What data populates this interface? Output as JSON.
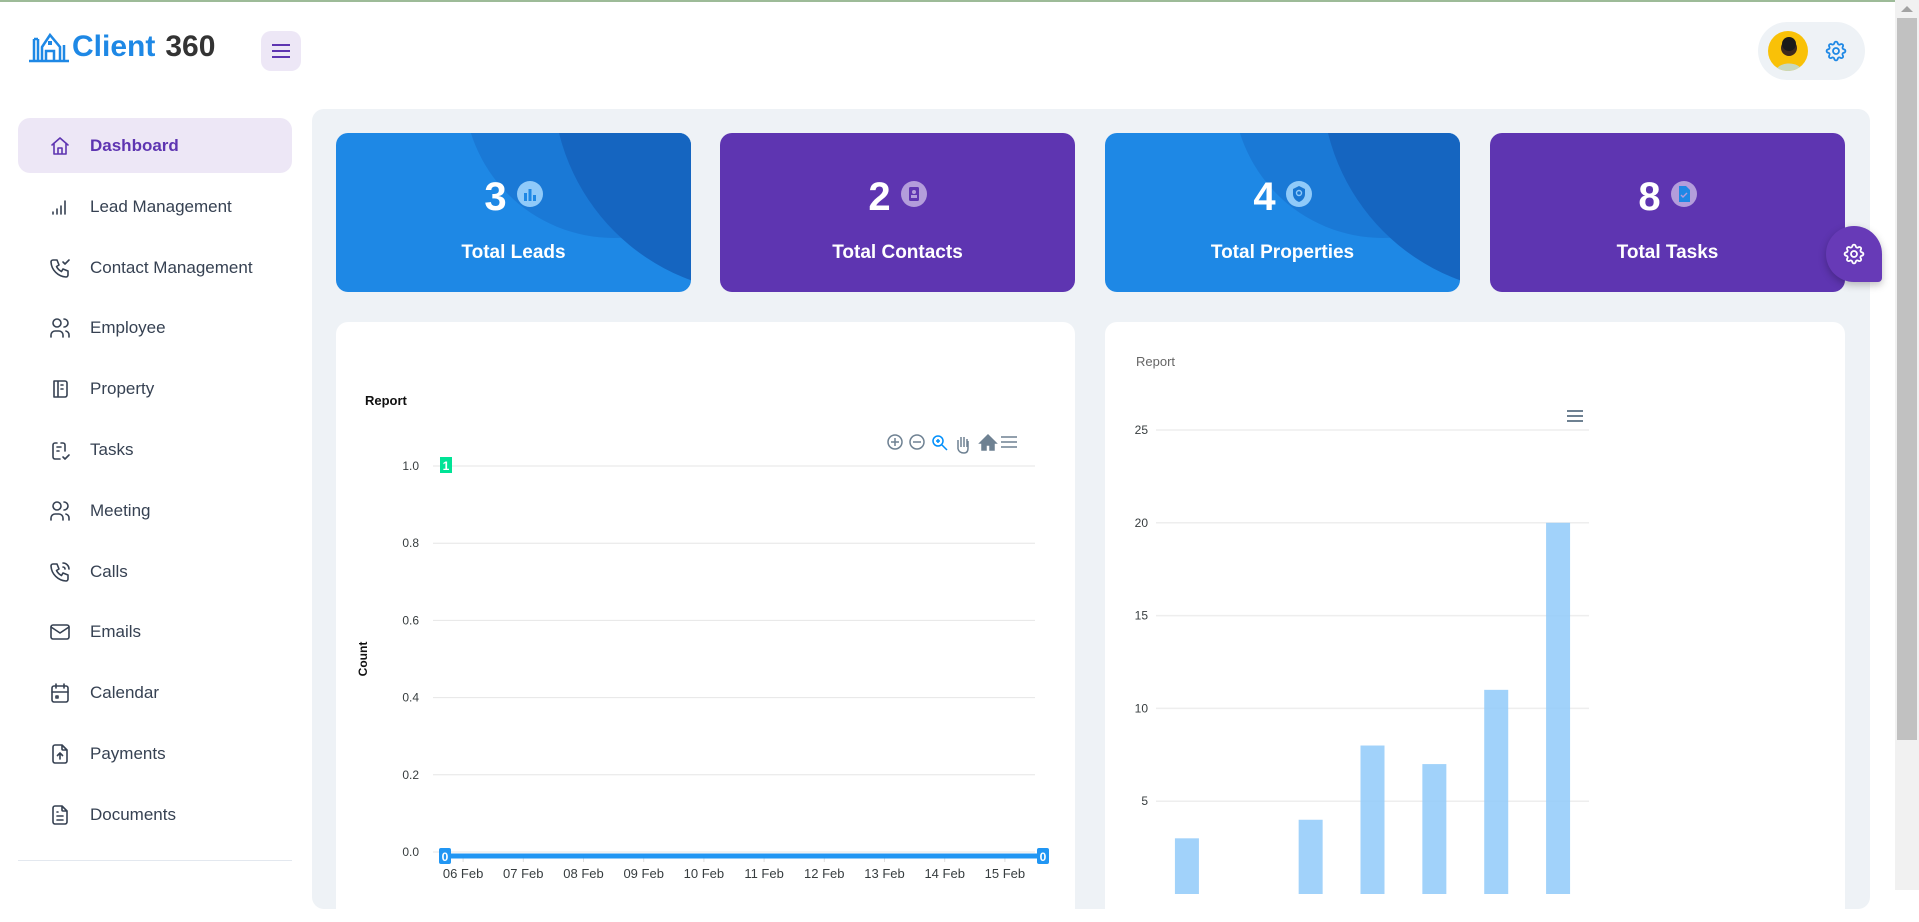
{
  "app": {
    "brand_part1": "Client",
    "brand_part2": "360"
  },
  "sidebar": {
    "items": [
      {
        "label": "Dashboard",
        "icon": "home-icon",
        "active": true
      },
      {
        "label": "Lead Management",
        "icon": "signal-icon"
      },
      {
        "label": "Contact Management",
        "icon": "phone-check-icon"
      },
      {
        "label": "Employee",
        "icon": "users-icon"
      },
      {
        "label": "Property",
        "icon": "notebook-icon"
      },
      {
        "label": "Tasks",
        "icon": "task-list-icon"
      },
      {
        "label": "Meeting",
        "icon": "users-icon"
      },
      {
        "label": "Calls",
        "icon": "phone-calling-icon"
      },
      {
        "label": "Emails",
        "icon": "mail-icon"
      },
      {
        "label": "Calendar",
        "icon": "calendar-icon"
      },
      {
        "label": "Payments",
        "icon": "file-upload-icon"
      },
      {
        "label": "Documents",
        "icon": "document-icon"
      }
    ]
  },
  "stats": [
    {
      "value": "3",
      "label": "Total Leads",
      "icon": "bar-chart-icon",
      "color": "#1e88e5"
    },
    {
      "value": "2",
      "label": "Total Contacts",
      "icon": "contact-badge-icon",
      "color": "#5e35b1"
    },
    {
      "value": "4",
      "label": "Total Properties",
      "icon": "shield-search-icon",
      "color": "#1e88e5"
    },
    {
      "value": "8",
      "label": "Total Tasks",
      "icon": "file-check-icon",
      "color": "#5e35b1"
    }
  ],
  "chart_data": [
    {
      "type": "line",
      "title": "Report",
      "ylabel": "Count",
      "xlabel": "",
      "categories": [
        "06 Feb",
        "07 Feb",
        "08 Feb",
        "09 Feb",
        "10 Feb",
        "11 Feb",
        "12 Feb",
        "13 Feb",
        "14 Feb",
        "15 Feb"
      ],
      "values": [
        0,
        0,
        0,
        0,
        0,
        0,
        0,
        0,
        0,
        0
      ],
      "ylim": [
        0,
        1
      ],
      "yticks": [
        "0.0",
        "0.2",
        "0.4",
        "0.6",
        "0.8",
        "1.0"
      ],
      "annotations": [
        {
          "y": 1,
          "text": "1",
          "color": "#00e396"
        },
        {
          "text": "0",
          "position": "start"
        },
        {
          "text": "0",
          "position": "end"
        }
      ],
      "grid": true,
      "series_color": "#2196f3"
    },
    {
      "type": "bar",
      "title": "Report",
      "values": [
        3,
        0,
        4,
        8,
        7,
        11,
        20
      ],
      "ylim": [
        0,
        25
      ],
      "yticks": [
        "5",
        "10",
        "15",
        "20",
        "25"
      ],
      "grid": true,
      "bar_color": "#90caf9"
    }
  ]
}
